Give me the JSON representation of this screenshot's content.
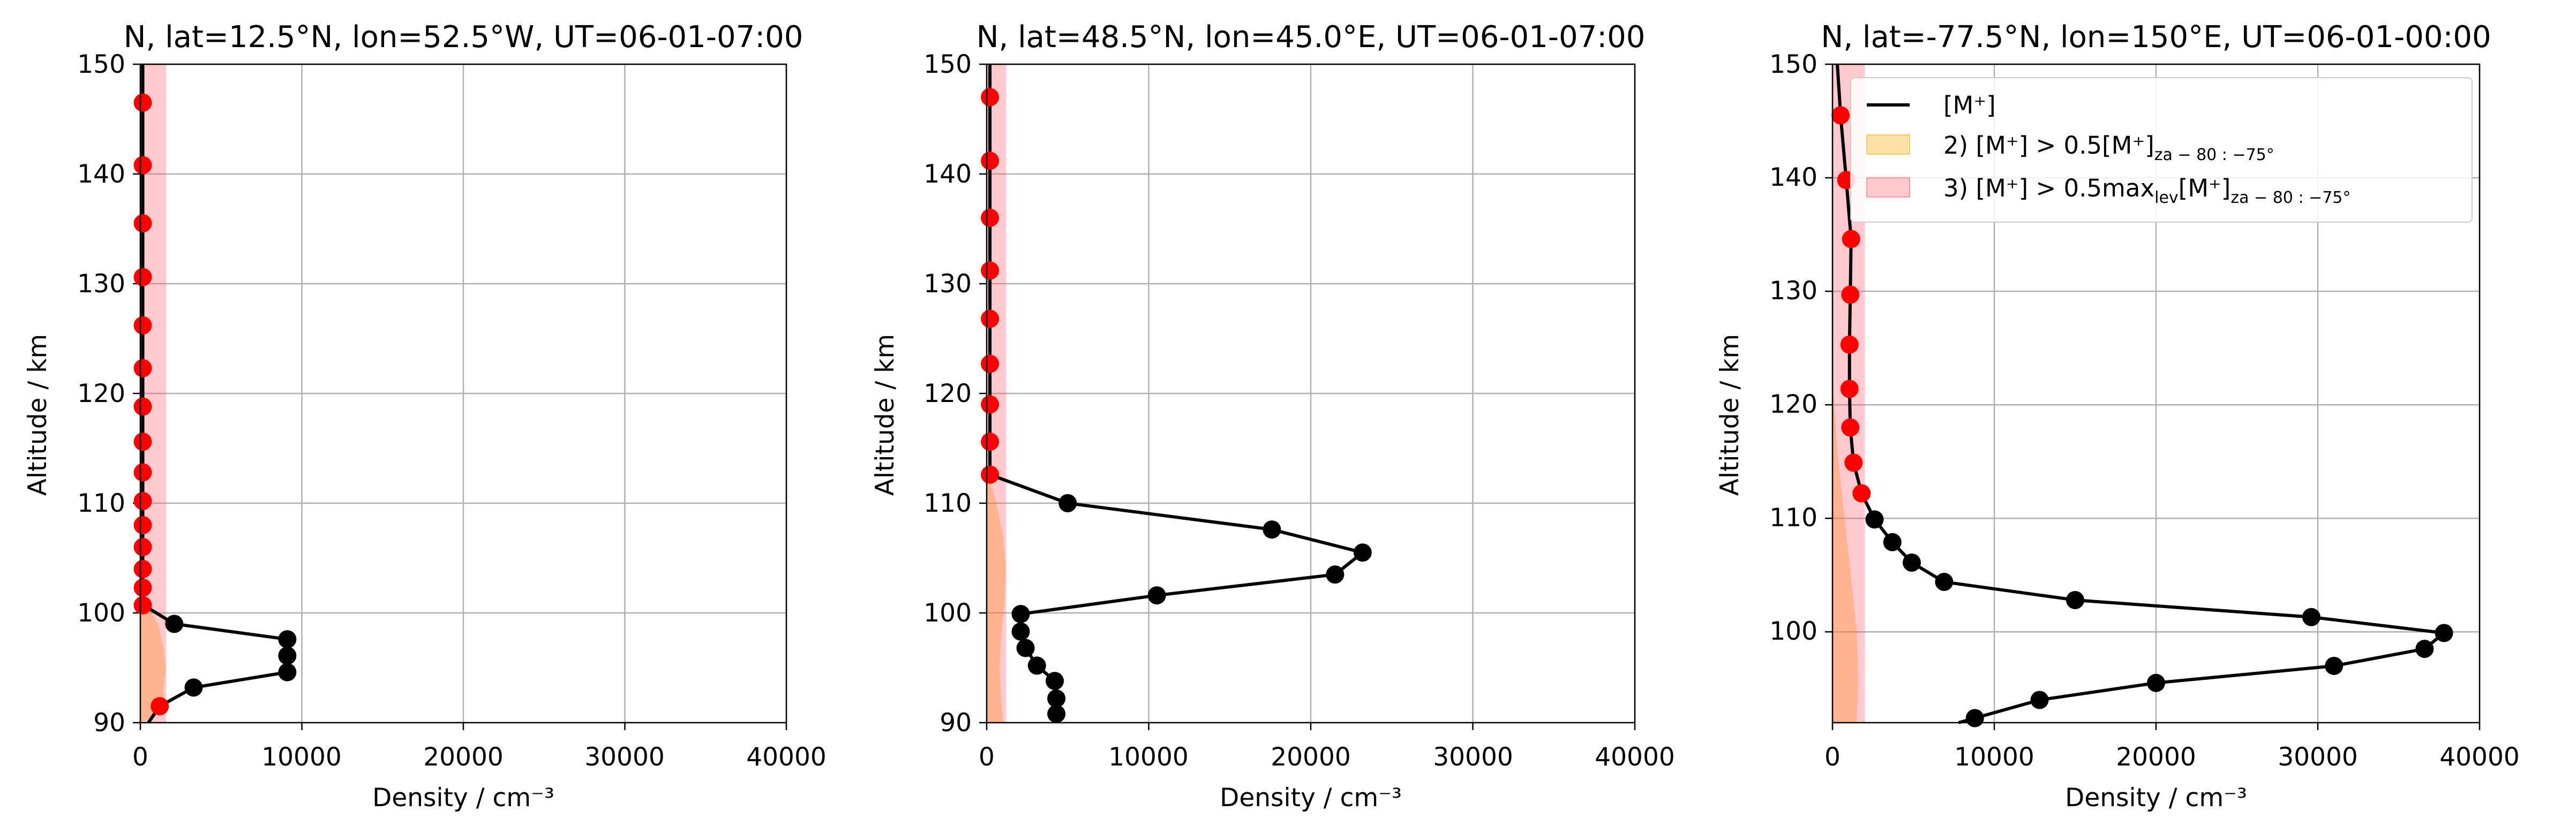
{
  "chart_data": [
    {
      "type": "line",
      "title": "N, lat=12.5°N, lon=52.5°W, UT=06-01-07:00",
      "xlabel": "Density / cm⁻³",
      "ylabel": "Altitude / km",
      "xlim": [
        0,
        40000
      ],
      "ylim": [
        90,
        150
      ],
      "xticks": [
        "0",
        "10000",
        "20000",
        "30000",
        "40000"
      ],
      "yticks": [
        "90",
        "100",
        "110",
        "120",
        "130",
        "140",
        "150"
      ],
      "grid": true,
      "series": [
        {
          "name": "",
          "color": "#000000",
          "line": [
            [
              500,
              90
            ],
            [
              1200,
              91.5
            ],
            [
              3300,
              93.2
            ],
            [
              9100,
              94.6
            ],
            [
              9100,
              96.1
            ],
            [
              9100,
              97.6
            ],
            [
              2100,
              99
            ],
            [
              200,
              100.7
            ],
            [
              150,
              102.3
            ],
            [
              150,
              104
            ],
            [
              150,
              106
            ],
            [
              150,
              108
            ],
            [
              150,
              110.2
            ],
            [
              150,
              112.8
            ],
            [
              150,
              115.6
            ],
            [
              150,
              118.8
            ],
            [
              150,
              122.3
            ],
            [
              150,
              126.2
            ],
            [
              150,
              130.6
            ],
            [
              150,
              135.5
            ],
            [
              150,
              140.8
            ],
            [
              150,
              146.5
            ],
            [
              150,
              150
            ]
          ],
          "points": [
            {
              "x": 1200,
              "y": 91.5,
              "color": "#ff0000"
            },
            {
              "x": 3300,
              "y": 93.2,
              "color": "#000000"
            },
            {
              "x": 9100,
              "y": 94.6,
              "color": "#000000"
            },
            {
              "x": 9100,
              "y": 96.1,
              "color": "#000000"
            },
            {
              "x": 9100,
              "y": 97.6,
              "color": "#000000"
            },
            {
              "x": 2100,
              "y": 99,
              "color": "#000000"
            },
            {
              "x": 150,
              "y": 100.7,
              "color": "#ff0000"
            },
            {
              "x": 150,
              "y": 102.3,
              "color": "#ff0000"
            },
            {
              "x": 150,
              "y": 104,
              "color": "#ff0000"
            },
            {
              "x": 150,
              "y": 106,
              "color": "#ff0000"
            },
            {
              "x": 150,
              "y": 108,
              "color": "#ff0000"
            },
            {
              "x": 150,
              "y": 110.2,
              "color": "#ff0000"
            },
            {
              "x": 150,
              "y": 112.8,
              "color": "#ff0000"
            },
            {
              "x": 150,
              "y": 115.6,
              "color": "#ff0000"
            },
            {
              "x": 150,
              "y": 118.8,
              "color": "#ff0000"
            },
            {
              "x": 150,
              "y": 122.3,
              "color": "#ff0000"
            },
            {
              "x": 150,
              "y": 126.2,
              "color": "#ff0000"
            },
            {
              "x": 150,
              "y": 130.6,
              "color": "#ff0000"
            },
            {
              "x": 150,
              "y": 135.5,
              "color": "#ff0000"
            },
            {
              "x": 150,
              "y": 140.8,
              "color": "#ff0000"
            },
            {
              "x": 150,
              "y": 146.5,
              "color": "#ff0000"
            }
          ]
        }
      ],
      "bands": [
        {
          "fill": "#ffa500",
          "opacity": 0.35,
          "profile": [
            [
              0,
              90
            ],
            [
              1500,
              91
            ],
            [
              1400,
              93
            ],
            [
              1600,
              95
            ],
            [
              1400,
              97
            ],
            [
              1100,
              99
            ],
            [
              500,
              100.5
            ],
            [
              150,
              102
            ],
            [
              0,
              103
            ]
          ]
        },
        {
          "fill": "#ff4d5e",
          "opacity": 0.3,
          "profile": [
            [
              1600,
              90
            ],
            [
              1600,
              150
            ]
          ]
        }
      ]
    },
    {
      "type": "line",
      "title": "N, lat=48.5°N, lon=45.0°E, UT=06-01-07:00",
      "xlabel": "Density / cm⁻³",
      "ylabel": "Altitude / km",
      "xlim": [
        0,
        40000
      ],
      "ylim": [
        90,
        150
      ],
      "xticks": [
        "0",
        "10000",
        "20000",
        "30000",
        "40000"
      ],
      "yticks": [
        "90",
        "100",
        "110",
        "120",
        "130",
        "140",
        "150"
      ],
      "grid": true,
      "series": [
        {
          "name": "",
          "color": "#000000",
          "line": [
            [
              4300,
              90.8
            ],
            [
              4300,
              92.2
            ],
            [
              4200,
              93.8
            ],
            [
              3100,
              95.2
            ],
            [
              2400,
              96.8
            ],
            [
              2100,
              98.3
            ],
            [
              2100,
              99.9
            ],
            [
              10500,
              101.6
            ],
            [
              21500,
              103.5
            ],
            [
              23200,
              105.5
            ],
            [
              17600,
              107.6
            ],
            [
              5000,
              110
            ],
            [
              200,
              112.6
            ],
            [
              200,
              115.6
            ],
            [
              200,
              119
            ],
            [
              200,
              122.7
            ],
            [
              200,
              126.8
            ],
            [
              200,
              131.2
            ],
            [
              200,
              136
            ],
            [
              200,
              141.2
            ],
            [
              200,
              147
            ],
            [
              200,
              150
            ]
          ],
          "points": [
            {
              "x": 4300,
              "y": 90.8,
              "color": "#000000"
            },
            {
              "x": 4300,
              "y": 92.2,
              "color": "#000000"
            },
            {
              "x": 4200,
              "y": 93.8,
              "color": "#000000"
            },
            {
              "x": 3100,
              "y": 95.2,
              "color": "#000000"
            },
            {
              "x": 2400,
              "y": 96.8,
              "color": "#000000"
            },
            {
              "x": 2100,
              "y": 98.3,
              "color": "#000000"
            },
            {
              "x": 2100,
              "y": 99.9,
              "color": "#000000"
            },
            {
              "x": 10500,
              "y": 101.6,
              "color": "#000000"
            },
            {
              "x": 21500,
              "y": 103.5,
              "color": "#000000"
            },
            {
              "x": 23200,
              "y": 105.5,
              "color": "#000000"
            },
            {
              "x": 17600,
              "y": 107.6,
              "color": "#000000"
            },
            {
              "x": 5000,
              "y": 110,
              "color": "#000000"
            },
            {
              "x": 200,
              "y": 112.6,
              "color": "#ff0000"
            },
            {
              "x": 200,
              "y": 115.6,
              "color": "#ff0000"
            },
            {
              "x": 200,
              "y": 119,
              "color": "#ff0000"
            },
            {
              "x": 200,
              "y": 122.7,
              "color": "#ff0000"
            },
            {
              "x": 200,
              "y": 126.8,
              "color": "#ff0000"
            },
            {
              "x": 200,
              "y": 131.2,
              "color": "#ff0000"
            },
            {
              "x": 200,
              "y": 136,
              "color": "#ff0000"
            },
            {
              "x": 200,
              "y": 141.2,
              "color": "#ff0000"
            },
            {
              "x": 200,
              "y": 147,
              "color": "#ff0000"
            }
          ]
        }
      ],
      "bands": [
        {
          "fill": "#ffa500",
          "opacity": 0.35,
          "profile": [
            [
              1000,
              90
            ],
            [
              900,
              92
            ],
            [
              800,
              95
            ],
            [
              900,
              98
            ],
            [
              1100,
              101
            ],
            [
              1200,
              104
            ],
            [
              1000,
              107
            ],
            [
              600,
              110
            ],
            [
              200,
              112
            ],
            [
              0,
              113
            ]
          ]
        },
        {
          "fill": "#ff4d5e",
          "opacity": 0.3,
          "profile": [
            [
              1200,
              90
            ],
            [
              1200,
              150
            ]
          ]
        }
      ]
    },
    {
      "type": "line",
      "title": "N, lat=-77.5°N, lon=150°E, UT=06-01-00:00",
      "xlabel": "Density / cm⁻³",
      "ylabel": "Altitude / km",
      "xlim": [
        0,
        40000
      ],
      "ylim": [
        92,
        150
      ],
      "xticks": [
        "0",
        "10000",
        "20000",
        "30000",
        "40000"
      ],
      "yticks": [
        "100",
        "110",
        "120",
        "130",
        "140",
        "150"
      ],
      "grid": true,
      "legend": {
        "placement": "top-right",
        "entries": [
          {
            "label": "[M⁺]",
            "kind": "line",
            "color": "#000000"
          },
          {
            "label": "2) [M⁺] > 0.5[M⁺]",
            "sub": "za − 80 : −75°",
            "kind": "patch",
            "color": "#ffa500"
          },
          {
            "label": "3) [M⁺] > 0.5max",
            "sub1": "lev",
            "mid": "[M⁺]",
            "sub2": "za − 80 : −75°",
            "kind": "patch",
            "color": "#ff4d5e"
          }
        ]
      },
      "series": [
        {
          "name": "[M⁺]",
          "color": "#000000",
          "line": [
            [
              7800,
              92
            ],
            [
              8800,
              92.4
            ],
            [
              12800,
              94
            ],
            [
              20000,
              95.5
            ],
            [
              31000,
              97
            ],
            [
              36600,
              98.5
            ],
            [
              37800,
              99.9
            ],
            [
              29600,
              101.3
            ],
            [
              15000,
              102.8
            ],
            [
              6900,
              104.4
            ],
            [
              4900,
              106.1
            ],
            [
              3700,
              107.9
            ],
            [
              2600,
              109.9
            ],
            [
              1800,
              112.2
            ],
            [
              1300,
              114.9
            ],
            [
              1100,
              118
            ],
            [
              1050,
              121.4
            ],
            [
              1050,
              125.3
            ],
            [
              1100,
              129.7
            ],
            [
              1150,
              134.6
            ],
            [
              850,
              139.8
            ],
            [
              500,
              145.5
            ],
            [
              300,
              150
            ]
          ],
          "points": [
            {
              "x": 8800,
              "y": 92.4,
              "color": "#000000"
            },
            {
              "x": 12800,
              "y": 94,
              "color": "#000000"
            },
            {
              "x": 20000,
              "y": 95.5,
              "color": "#000000"
            },
            {
              "x": 31000,
              "y": 97,
              "color": "#000000"
            },
            {
              "x": 36600,
              "y": 98.5,
              "color": "#000000"
            },
            {
              "x": 37800,
              "y": 99.9,
              "color": "#000000"
            },
            {
              "x": 29600,
              "y": 101.3,
              "color": "#000000"
            },
            {
              "x": 15000,
              "y": 102.8,
              "color": "#000000"
            },
            {
              "x": 6900,
              "y": 104.4,
              "color": "#000000"
            },
            {
              "x": 4900,
              "y": 106.1,
              "color": "#000000"
            },
            {
              "x": 3700,
              "y": 107.9,
              "color": "#000000"
            },
            {
              "x": 2600,
              "y": 109.9,
              "color": "#000000"
            },
            {
              "x": 1800,
              "y": 112.2,
              "color": "#ff0000"
            },
            {
              "x": 1300,
              "y": 114.9,
              "color": "#ff0000"
            },
            {
              "x": 1100,
              "y": 118,
              "color": "#ff0000"
            },
            {
              "x": 1050,
              "y": 121.4,
              "color": "#ff0000"
            },
            {
              "x": 1050,
              "y": 125.3,
              "color": "#ff0000"
            },
            {
              "x": 1100,
              "y": 129.7,
              "color": "#ff0000"
            },
            {
              "x": 1150,
              "y": 134.6,
              "color": "#ff0000"
            },
            {
              "x": 850,
              "y": 139.8,
              "color": "#ff0000"
            },
            {
              "x": 500,
              "y": 145.5,
              "color": "#ff0000"
            }
          ]
        }
      ],
      "bands": [
        {
          "fill": "#ffa500",
          "opacity": 0.35,
          "profile": [
            [
              1500,
              92
            ],
            [
              1600,
              96
            ],
            [
              1500,
              100
            ],
            [
              1200,
              104
            ],
            [
              900,
              108
            ],
            [
              600,
              112
            ],
            [
              300,
              116
            ],
            [
              100,
              120
            ],
            [
              0,
              123
            ]
          ]
        },
        {
          "fill": "#ff4d5e",
          "opacity": 0.3,
          "profile": [
            [
              2000,
              92
            ],
            [
              2000,
              150
            ]
          ]
        }
      ]
    }
  ]
}
